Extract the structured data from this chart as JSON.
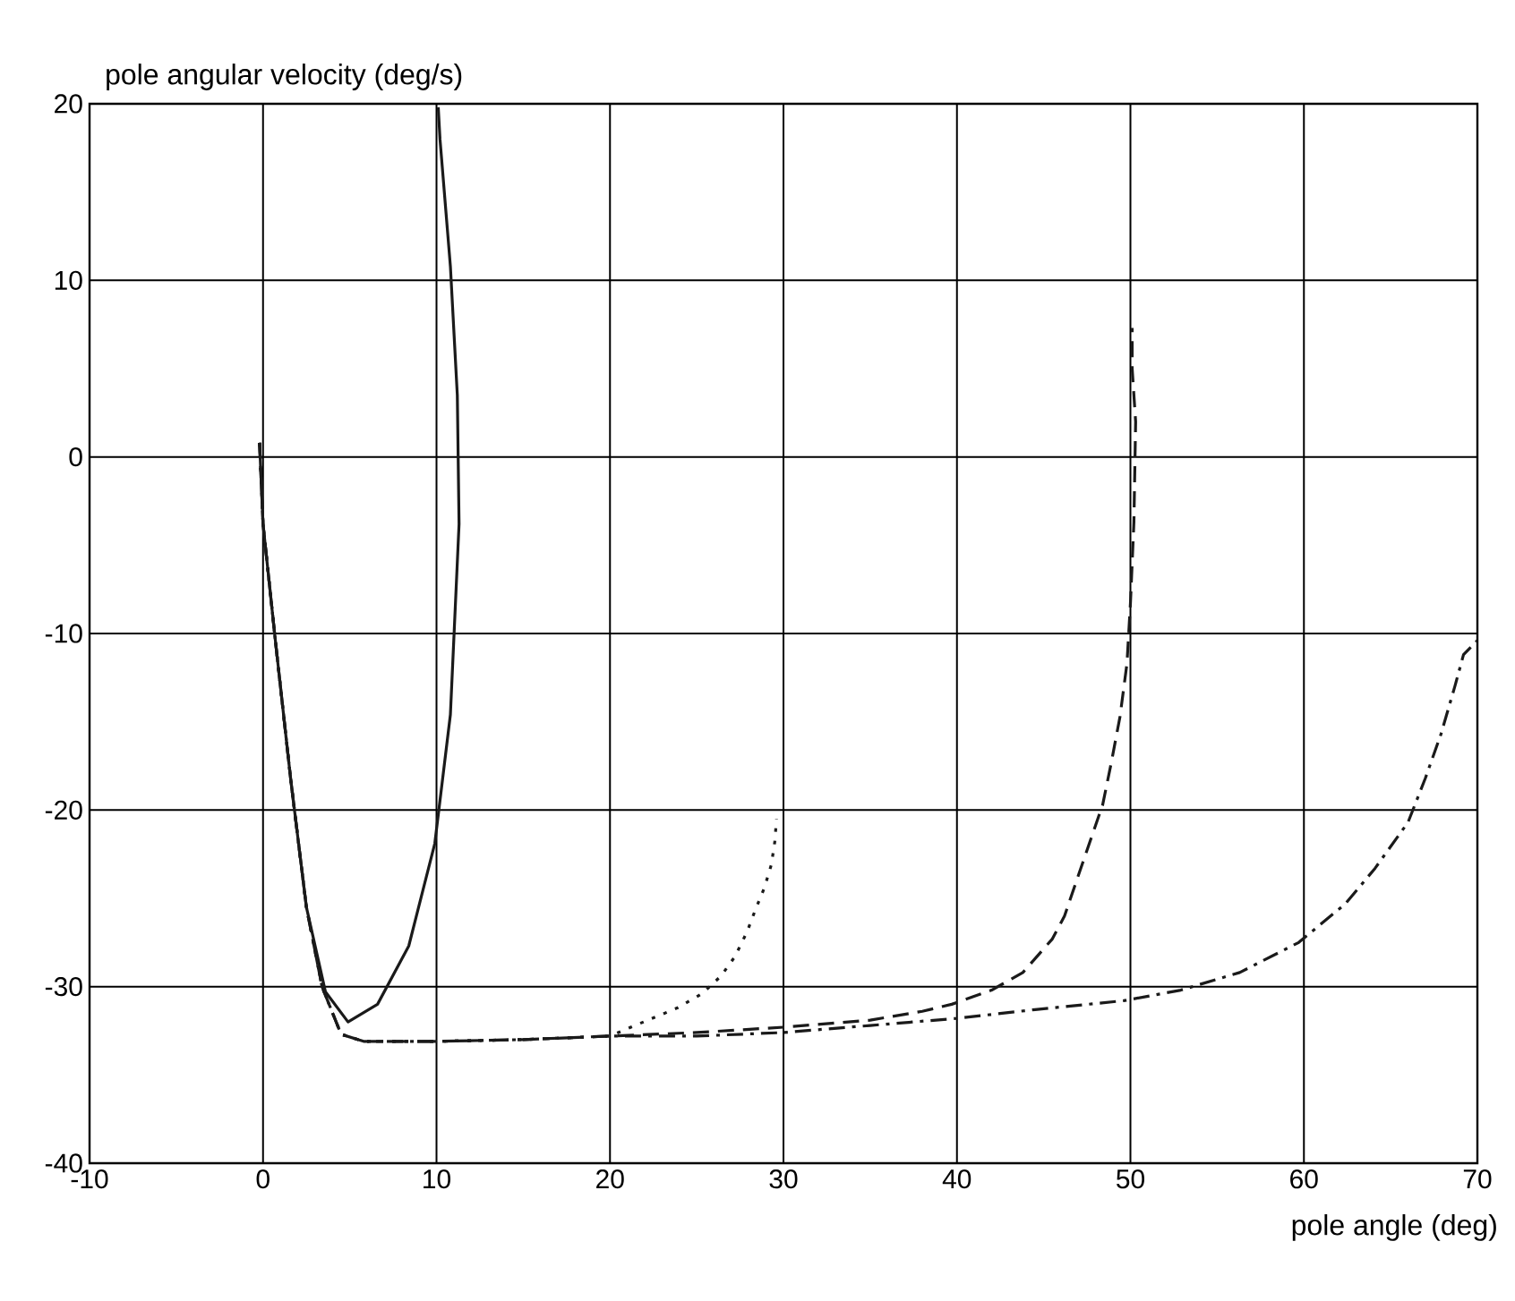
{
  "chart_data": {
    "type": "line",
    "xlabel": "pole angle (deg)",
    "ylabel": "pole angular velocity (deg/s)",
    "xlim": [
      -10,
      70
    ],
    "ylim": [
      -40,
      20
    ],
    "xticks": [
      -10,
      0,
      10,
      20,
      30,
      40,
      50,
      60,
      70
    ],
    "yticks": [
      -40,
      -30,
      -20,
      -10,
      0,
      10,
      20
    ],
    "grid": true,
    "series": [
      {
        "color": "#1a1a1a",
        "line_style": "solid",
        "x": [
          -0.2,
          0,
          0.7,
          1.6,
          2.5,
          3.6,
          4.9,
          6.6,
          8.4,
          9.9,
          10.8,
          11.3,
          11.2,
          10.8,
          10.2,
          10.1
        ],
        "values": [
          0.8,
          -3.8,
          -10.3,
          -18.3,
          -25.5,
          -30.3,
          -32,
          -31,
          -27.7,
          -21.9,
          -14.6,
          -3.8,
          3.5,
          10.8,
          18,
          19.8
        ]
      },
      {
        "color": "#1a1a1a",
        "line_style": "dotted",
        "x": [
          -0.2,
          0,
          0.7,
          1.6,
          2.5,
          3.4,
          4.5,
          5.8,
          10,
          15,
          20,
          21.2,
          23.9,
          25.3,
          26.4,
          27.2,
          27.9,
          28.4,
          28.9,
          29.3,
          29.5,
          29.6
        ],
        "values": [
          0.8,
          -3.8,
          -10.3,
          -18.3,
          -25.5,
          -30,
          -32.7,
          -33.1,
          -33.1,
          -33,
          -32.8,
          -32.3,
          -31.2,
          -30.4,
          -29.4,
          -28.3,
          -26.9,
          -25.6,
          -24.4,
          -23.1,
          -21.8,
          -20.5
        ]
      },
      {
        "color": "#1a1a1a",
        "line_style": "dashed",
        "x": [
          -0.2,
          0,
          0.7,
          1.6,
          2.5,
          3.4,
          4.5,
          5.8,
          10,
          15,
          20,
          25,
          30,
          35,
          38,
          39.7,
          42,
          43.8,
          45.5,
          46.2,
          47,
          47.7,
          48.4,
          48.9,
          49.4,
          49.8,
          50,
          50.2,
          50.3,
          50.1,
          50.1
        ],
        "values": [
          0.8,
          -3.8,
          -10.3,
          -18.3,
          -25.5,
          -30,
          -32.7,
          -33.1,
          -33.1,
          -33,
          -32.8,
          -32.6,
          -32.3,
          -31.9,
          -31.4,
          -31,
          -30.2,
          -29.2,
          -27.3,
          -26,
          -23.7,
          -21.7,
          -19.7,
          -17.3,
          -14.7,
          -11.7,
          -8.3,
          -3.7,
          2,
          5,
          7.3
        ]
      },
      {
        "color": "#1a1a1a",
        "line_style": "dashdot",
        "x": [
          -0.2,
          0,
          0.7,
          1.6,
          2.5,
          3.4,
          4.5,
          5.8,
          10,
          15,
          20,
          25,
          30,
          35,
          40,
          44.5,
          49.6,
          52.9,
          56.3,
          59.7,
          62.4,
          64.1,
          66,
          67,
          67.9,
          68.7,
          69.2,
          70
        ],
        "values": [
          0.8,
          -3.8,
          -10.3,
          -18.3,
          -25.5,
          -30,
          -32.7,
          -33.1,
          -33.1,
          -33,
          -32.8,
          -32.8,
          -32.6,
          -32.2,
          -31.8,
          -31.3,
          -30.8,
          -30.2,
          -29.2,
          -27.5,
          -25.3,
          -23.3,
          -20.7,
          -18.2,
          -15.7,
          -13,
          -11.2,
          -10.4
        ]
      }
    ]
  }
}
